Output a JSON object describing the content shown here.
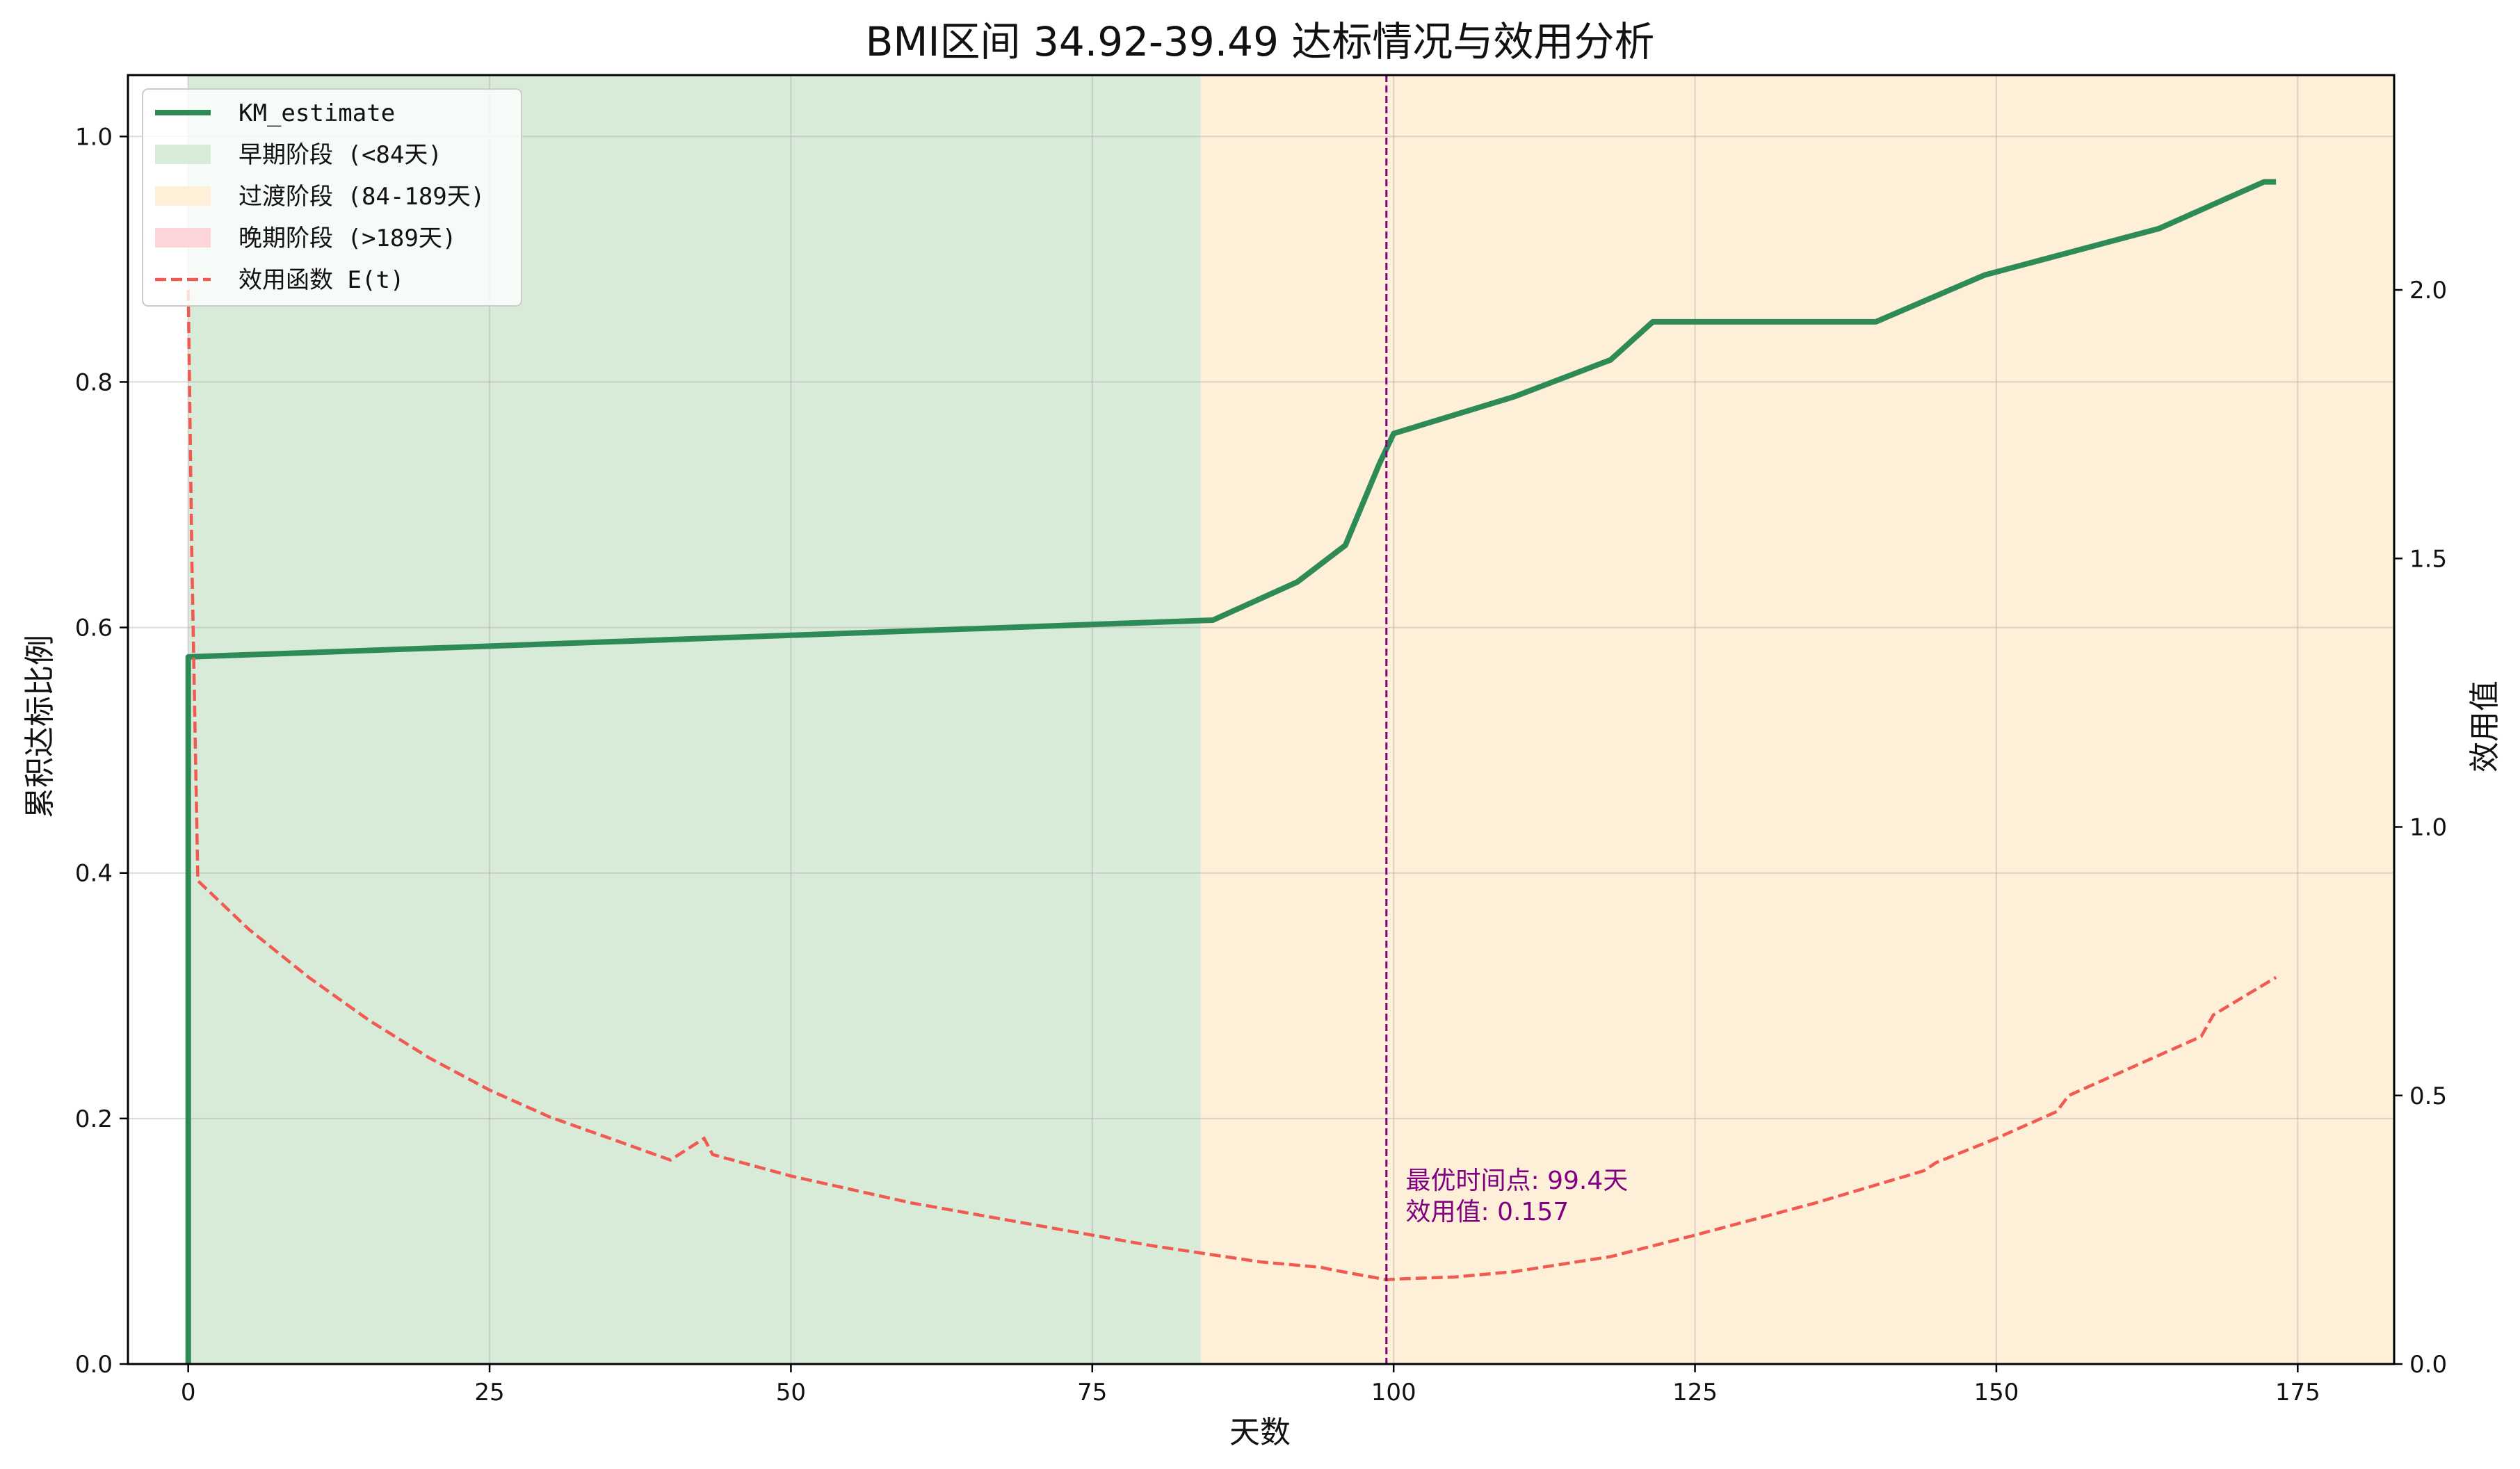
{
  "chart_data": {
    "type": "line",
    "title": "BMI区间 34.92-39.49 达标情况与效用分析",
    "xlabel": "天数",
    "ylabel": "累积达标比例",
    "y2label": "效用值",
    "xlim": [
      -5,
      183
    ],
    "ylim": [
      0,
      1.05
    ],
    "y2lim": [
      0,
      2.4
    ],
    "xticks": [
      0,
      25,
      50,
      75,
      100,
      125,
      150,
      175
    ],
    "yticks": [
      0.0,
      0.2,
      0.4,
      0.6,
      0.8,
      1.0
    ],
    "y2ticks": [
      0.0,
      0.5,
      1.0,
      1.5,
      2.0
    ],
    "xtick_labels": [
      "0",
      "25",
      "50",
      "75",
      "100",
      "125",
      "150",
      "175"
    ],
    "ytick_labels": [
      "0.0",
      "0.2",
      "0.4",
      "0.6",
      "0.8",
      "1.0"
    ],
    "y2tick_labels": [
      "0.0",
      "0.5",
      "1.0",
      "1.5",
      "2.0"
    ],
    "grid": true,
    "legend_position": "top-left",
    "regions": [
      {
        "name": "早期阶段 (<84天)",
        "x_start": 0,
        "x_end": 84,
        "color": "#d8ead8"
      },
      {
        "name": "过渡阶段 (84-189天)",
        "x_start": 84,
        "x_end": 189,
        "color": "#fdefd8"
      },
      {
        "name": "晚期阶段 (>189天)",
        "x_start": 189,
        "x_end": 999,
        "color": "#fdd5d8"
      }
    ],
    "series": [
      {
        "name": "KM_estimate",
        "axis": "left",
        "color": "#2e8b57",
        "style": "solid",
        "x": [
          0,
          0,
          85,
          92,
          96,
          98.8,
          100,
          110,
          118,
          121.5,
          140,
          149,
          163.5,
          172.2,
          173.2
        ],
        "y": [
          0,
          0.576,
          0.606,
          0.637,
          0.667,
          0.733,
          0.758,
          0.788,
          0.818,
          0.849,
          0.849,
          0.887,
          0.925,
          0.963,
          0.963
        ]
      },
      {
        "name": "效用函数 E(t)",
        "axis": "right",
        "color": "#f05a50",
        "style": "dashed",
        "x": [
          0,
          0.3,
          0.8,
          5,
          10,
          15,
          20,
          25,
          30,
          35,
          40,
          42.8,
          43.5,
          50,
          60,
          70,
          80,
          86,
          89,
          94,
          95,
          99.4,
          101,
          105,
          110,
          118,
          125,
          135,
          144,
          145,
          150,
          155,
          156,
          162,
          167,
          168,
          173.2
        ],
        "y": [
          2.0,
          1.5,
          0.9,
          0.81,
          0.72,
          0.64,
          0.57,
          0.51,
          0.46,
          0.42,
          0.38,
          0.42,
          0.39,
          0.35,
          0.3,
          0.26,
          0.22,
          0.2,
          0.19,
          0.18,
          0.175,
          0.157,
          0.159,
          0.162,
          0.172,
          0.2,
          0.24,
          0.3,
          0.36,
          0.375,
          0.42,
          0.47,
          0.5,
          0.56,
          0.61,
          0.65,
          0.72
        ]
      }
    ],
    "vline": {
      "x": 99.4,
      "color": "#800080",
      "style": "dashed"
    },
    "annotation": {
      "x": 101,
      "y": 0.12,
      "line1": "最优时间点: 99.4天",
      "line2": "效用值: 0.157"
    },
    "colors": {
      "km": "#2e8b57",
      "utility": "#f05a50",
      "vline": "#800080",
      "annotation": "#800080"
    }
  }
}
